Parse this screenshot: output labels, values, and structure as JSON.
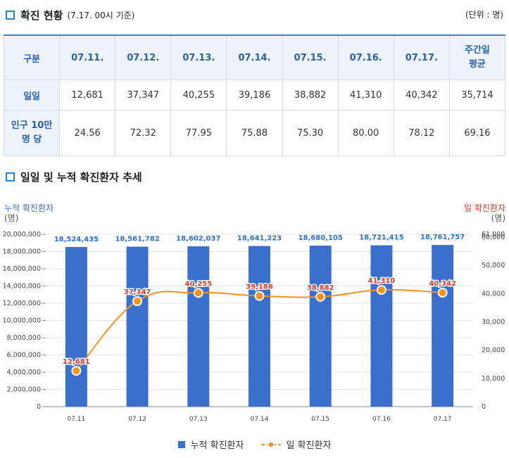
{
  "section1": {
    "title": "확진 현황",
    "subtitle": "(7.17. 00시 기준)",
    "unit": "(단위 : 명)"
  },
  "table": {
    "header": [
      "구분",
      "07.11.",
      "07.12.",
      "07.13.",
      "07.14.",
      "07.15.",
      "07.16.",
      "07.17.",
      "주간일\n평균"
    ],
    "rows": [
      {
        "label": "일일",
        "values": [
          "12,681",
          "37,347",
          "40,255",
          "39,186",
          "38,882",
          "41,310",
          "40,342",
          "35,714"
        ]
      },
      {
        "label": "인구 10만\n명 당",
        "values": [
          "24.56",
          "72.32",
          "77.95",
          "75.88",
          "75.30",
          "80.00",
          "78.12",
          "69.16"
        ]
      }
    ]
  },
  "section2": {
    "title": "일일 및 누적 확진환자 추세"
  },
  "axes": {
    "left_title": "누적 확진환자",
    "left_unit": "(명)",
    "right_title": "일 확진환자",
    "right_unit": "(명)"
  },
  "legend": {
    "bar": "누적 확진환자",
    "line": "일 확진환자"
  },
  "colors": {
    "bar": "#3a6fcc",
    "line": "#f29220",
    "line_label": "#d63a2f",
    "bar_label": "#2f6fd0",
    "accent": "#1f88c8"
  },
  "chart_data": {
    "type": "bar+line",
    "categories": [
      "07.11",
      "07.12",
      "07.13",
      "07.14",
      "07.15",
      "07.16",
      "07.17"
    ],
    "series": [
      {
        "name": "누적 확진환자",
        "type": "bar",
        "axis": "left",
        "values": [
          18524435,
          18561782,
          18602037,
          18641223,
          18680105,
          18721415,
          18761757
        ],
        "labels": [
          "18,524,435",
          "18,561,782",
          "18,602,037",
          "18,641,223",
          "18,680,105",
          "18,721,415",
          "18,761,757"
        ]
      },
      {
        "name": "일 확진환자",
        "type": "line",
        "axis": "right",
        "values": [
          12681,
          37347,
          40255,
          39186,
          38882,
          41310,
          40342
        ],
        "labels": [
          "12,681",
          "37,347",
          "40,255",
          "39,186",
          "38,882",
          "41,310",
          "40,342"
        ]
      }
    ],
    "left_axis": {
      "min": 0,
      "max": 20000000,
      "step": 2000000,
      "ticks": [
        "0",
        "2,000,000",
        "4,000,000",
        "6,000,000",
        "8,000,000",
        "10,000,000",
        "12,000,000",
        "14,000,000",
        "16,000,000",
        "18,000,000",
        "20,000,000"
      ]
    },
    "right_axis": {
      "min": 0,
      "max": 61000,
      "tick_values": [
        0,
        10000,
        20000,
        30000,
        40000,
        50000,
        60000,
        61000
      ],
      "ticks": [
        "0",
        "10,000",
        "20,000",
        "30,000",
        "40,000",
        "50,000",
        "60,000",
        "61,000"
      ]
    }
  }
}
